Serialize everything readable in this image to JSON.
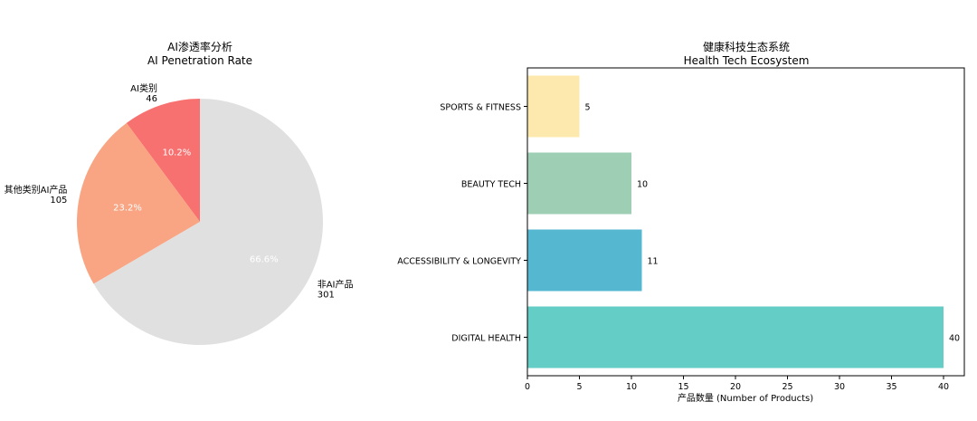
{
  "chart_data": [
    {
      "type": "pie",
      "title": "AI渗透率分析",
      "subtitle": "AI Penetration Rate",
      "labels": [
        "AI类别",
        "其他类别AI产品",
        "非AI产品"
      ],
      "values": [
        46,
        105,
        301
      ],
      "percent_labels": [
        "10.2%",
        "23.2%",
        "66.6%"
      ],
      "colors": [
        "#f87171",
        "#f9a482",
        "#e0e0e0"
      ],
      "start_angle_deg": 90,
      "direction": "counterclockwise"
    },
    {
      "type": "bar",
      "orientation": "horizontal",
      "title": "健康科技生态系统",
      "subtitle": "Health Tech Ecosystem",
      "categories": [
        "DIGITAL HEALTH",
        "ACCESSIBILITY & LONGEVITY",
        "BEAUTY TECH",
        "SPORTS & FITNESS"
      ],
      "values": [
        40,
        11,
        10,
        5
      ],
      "colors": [
        "#63cdc6",
        "#56b7d1",
        "#9ecfb5",
        "#fde9ad"
      ],
      "xlabel": "产品数量 (Number of Products)",
      "ylabel": "",
      "xlim": [
        0,
        42
      ],
      "xticks": [
        0,
        5,
        10,
        15,
        20,
        25,
        30,
        35,
        40
      ],
      "grid": false,
      "legend": "none"
    }
  ]
}
